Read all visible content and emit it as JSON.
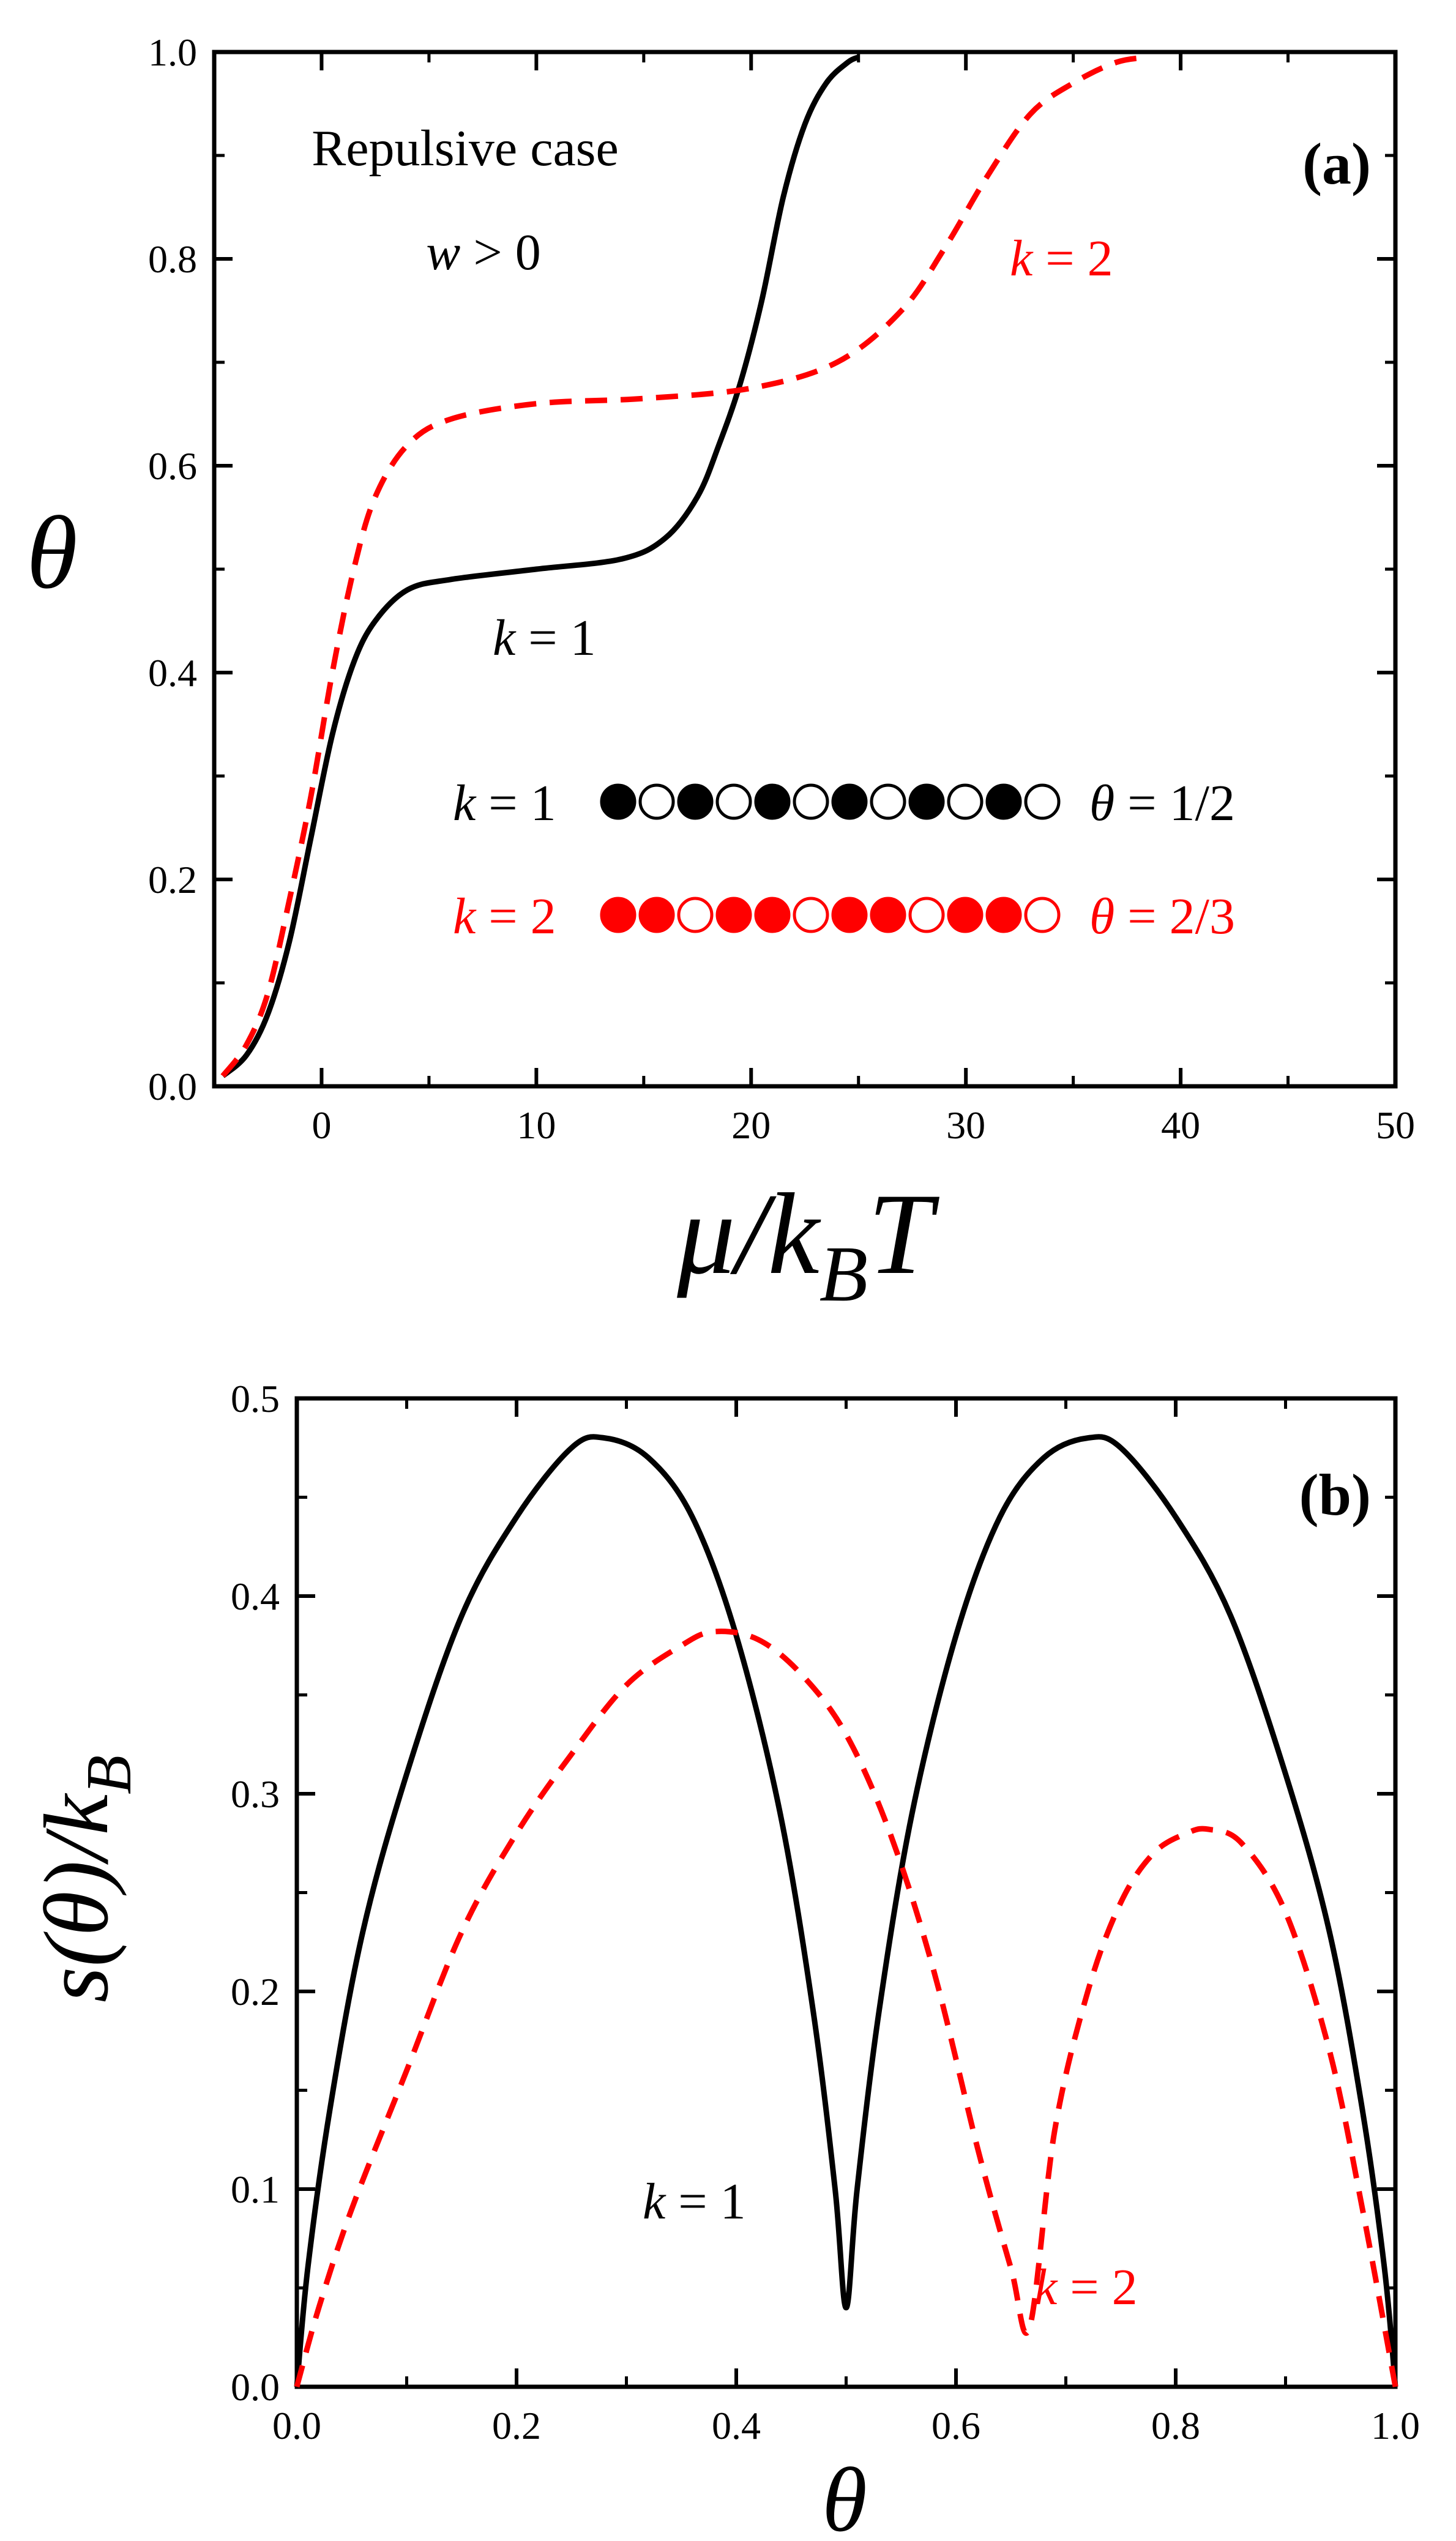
{
  "chart_data": [
    {
      "panel": "(a)",
      "type": "line",
      "xlabel": "μ/kBT",
      "xlabel_parts": {
        "main": "μ/k",
        "sub": "B",
        "tail": "T"
      },
      "ylabel": "θ",
      "xlim": [
        -5,
        50
      ],
      "ylim": [
        0,
        1.0
      ],
      "xticks": [
        0,
        10,
        20,
        30,
        40,
        50
      ],
      "yticks": [
        0.0,
        0.2,
        0.4,
        0.6,
        0.8,
        1.0
      ],
      "xtick_labels": [
        "0",
        "10",
        "20",
        "30",
        "40",
        "50"
      ],
      "ytick_labels": [
        "0.0",
        "0.2",
        "0.4",
        "0.6",
        "0.8",
        "1.0"
      ],
      "annotations": {
        "title_line1": "Repulsive case",
        "title_line2": {
          "var": "w",
          "rest": " > 0"
        },
        "k1_label": {
          "var": "k",
          "rest": " = 1"
        },
        "k2_label": {
          "var": "k",
          "rest": " = 2"
        }
      },
      "lattice_rows": [
        {
          "label_var": "k",
          "label_rest": " = 1",
          "color": "#000000",
          "filled": [
            true,
            false,
            true,
            false,
            true,
            false,
            true,
            false,
            true,
            false,
            true,
            false
          ],
          "theta_var": "θ",
          "theta_rest": " = 1/2"
        },
        {
          "label_var": "k",
          "label_rest": " = 2",
          "color": "#ff0000",
          "filled": [
            true,
            true,
            false,
            true,
            true,
            false,
            true,
            true,
            false,
            true,
            true,
            false
          ],
          "theta_var": "θ",
          "theta_rest": " = 2/3"
        }
      ],
      "series": [
        {
          "name": "k = 1",
          "color": "#000000",
          "style": "solid",
          "x": [
            -4.6,
            -3.5,
            -2.5,
            -1.5,
            -0.5,
            0.5,
            1.5,
            2.5,
            4,
            6,
            10,
            14,
            16,
            17.5,
            18.5,
            19.5,
            20.5,
            21.5,
            22.5,
            23.5,
            24.5,
            25
          ],
          "y": [
            0.01,
            0.03,
            0.07,
            0.14,
            0.24,
            0.34,
            0.41,
            0.45,
            0.48,
            0.49,
            0.5,
            0.51,
            0.53,
            0.57,
            0.62,
            0.68,
            0.76,
            0.86,
            0.93,
            0.97,
            0.99,
            0.995
          ]
        },
        {
          "name": "k = 2",
          "color": "#ff0000",
          "style": "dashed",
          "x": [
            -4.6,
            -3.5,
            -2.5,
            -1.5,
            -0.5,
            0.5,
            1.5,
            2.5,
            4,
            6,
            10,
            15,
            20,
            24,
            27,
            29,
            31,
            33,
            35,
            37,
            38.5
          ],
          "y": [
            0.01,
            0.04,
            0.09,
            0.18,
            0.28,
            0.4,
            0.5,
            0.57,
            0.62,
            0.645,
            0.66,
            0.665,
            0.675,
            0.7,
            0.75,
            0.81,
            0.88,
            0.94,
            0.97,
            0.99,
            0.995
          ]
        }
      ]
    },
    {
      "panel": "(b)",
      "type": "line",
      "xlabel": "θ",
      "ylabel": "s(θ)/kB",
      "ylabel_parts": {
        "main": "s(θ)/k",
        "sub": "B"
      },
      "xlim": [
        0,
        1.0
      ],
      "ylim": [
        0,
        0.5
      ],
      "xticks": [
        0.0,
        0.2,
        0.4,
        0.6,
        0.8,
        1.0
      ],
      "yticks": [
        0.0,
        0.1,
        0.2,
        0.3,
        0.4,
        0.5
      ],
      "xtick_labels": [
        "0.0",
        "0.2",
        "0.4",
        "0.6",
        "0.8",
        "1.0"
      ],
      "ytick_labels": [
        "0.0",
        "0.1",
        "0.2",
        "0.3",
        "0.4",
        "0.5"
      ],
      "annotations": {
        "k1_label": {
          "var": "k",
          "rest": " = 1"
        },
        "k2_label": {
          "var": "k",
          "rest": " = 2"
        }
      },
      "series": [
        {
          "name": "k = 1",
          "color": "#000000",
          "style": "solid",
          "x": [
            0.0,
            0.01,
            0.03,
            0.06,
            0.1,
            0.15,
            0.2,
            0.25,
            0.28,
            0.32,
            0.36,
            0.4,
            0.44,
            0.47,
            0.49,
            0.5,
            0.51,
            0.53,
            0.56,
            0.6,
            0.64,
            0.68,
            0.72,
            0.75,
            0.8,
            0.85,
            0.9,
            0.94,
            0.97,
            0.99,
            1.0
          ],
          "y": [
            0.0,
            0.06,
            0.14,
            0.23,
            0.31,
            0.39,
            0.44,
            0.475,
            0.48,
            0.47,
            0.44,
            0.38,
            0.29,
            0.19,
            0.1,
            0.04,
            0.1,
            0.19,
            0.29,
            0.38,
            0.44,
            0.47,
            0.48,
            0.475,
            0.44,
            0.39,
            0.31,
            0.23,
            0.14,
            0.06,
            0.0
          ]
        },
        {
          "name": "k = 2",
          "color": "#ff0000",
          "style": "dashed",
          "x": [
            0.0,
            0.02,
            0.05,
            0.1,
            0.15,
            0.2,
            0.25,
            0.3,
            0.35,
            0.38,
            0.42,
            0.46,
            0.5,
            0.54,
            0.58,
            0.62,
            0.65,
            0.667,
            0.69,
            0.72,
            0.75,
            0.78,
            0.81,
            0.83,
            0.86,
            0.9,
            0.94,
            0.97,
            1.0
          ],
          "y": [
            0.0,
            0.04,
            0.09,
            0.16,
            0.23,
            0.28,
            0.32,
            0.355,
            0.375,
            0.382,
            0.378,
            0.36,
            0.33,
            0.28,
            0.21,
            0.12,
            0.06,
            0.03,
            0.13,
            0.2,
            0.245,
            0.27,
            0.28,
            0.282,
            0.275,
            0.24,
            0.17,
            0.09,
            0.0
          ]
        }
      ]
    }
  ]
}
